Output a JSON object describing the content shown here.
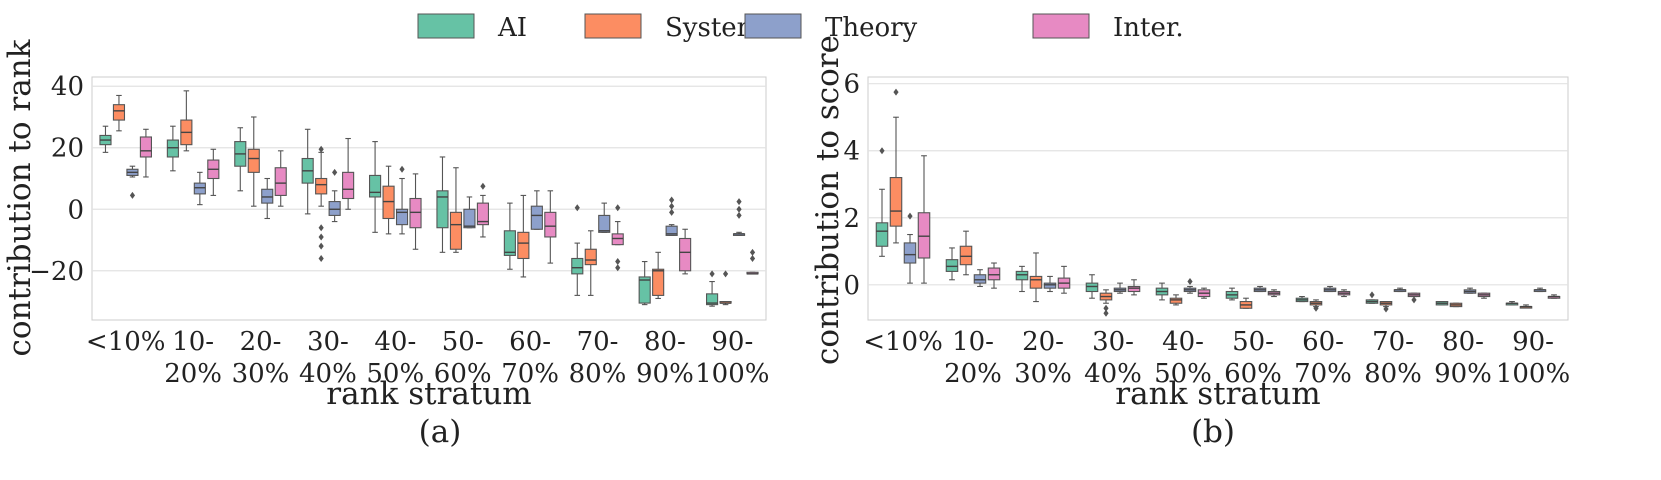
{
  "legend": [
    {
      "label": "AI",
      "color": "#66c2a5"
    },
    {
      "label": "Systems",
      "color": "#fc8d62"
    },
    {
      "label": "Theory",
      "color": "#8da0cb"
    },
    {
      "label": "Inter.",
      "color": "#e78ac3"
    }
  ],
  "chart_data": [
    {
      "type": "boxplot",
      "title": "",
      "caption": "(a)",
      "xlabel": "rank stratum",
      "ylabel": "contribution to rank",
      "ylim": [
        -36,
        43
      ],
      "yticks": [
        -20,
        0,
        20,
        40
      ],
      "ytick_labels": [
        "−20",
        "0",
        "20",
        "40"
      ],
      "categories": [
        [
          "<10%"
        ],
        [
          "10-",
          "20%"
        ],
        [
          "20-",
          "30%"
        ],
        [
          "30-",
          "40%"
        ],
        [
          "40-",
          "50%"
        ],
        [
          "50-",
          "60%"
        ],
        [
          "60-",
          "70%"
        ],
        [
          "70-",
          "80%"
        ],
        [
          "80-",
          "90%"
        ],
        [
          "90-",
          "100%"
        ]
      ],
      "series": [
        {
          "name": "AI",
          "boxes": [
            {
              "whislo": 18.5,
              "q1": 21,
              "med": 22.5,
              "q3": 24,
              "whishi": 27,
              "fliers": []
            },
            {
              "whislo": 12.5,
              "q1": 17,
              "med": 20,
              "q3": 22.5,
              "whishi": 27,
              "fliers": []
            },
            {
              "whislo": 6,
              "q1": 14,
              "med": 18,
              "q3": 22,
              "whishi": 26.5,
              "fliers": []
            },
            {
              "whislo": -1.5,
              "q1": 8.5,
              "med": 12.5,
              "q3": 16.5,
              "whishi": 26,
              "fliers": []
            },
            {
              "whislo": -7.5,
              "q1": 4,
              "med": 5.5,
              "q3": 11,
              "whishi": 22,
              "fliers": []
            },
            {
              "whislo": -14,
              "q1": -6,
              "med": 4,
              "q3": 6,
              "whishi": 17,
              "fliers": []
            },
            {
              "whislo": -19.5,
              "q1": -15,
              "med": -14,
              "q3": -7,
              "whishi": 2,
              "fliers": []
            },
            {
              "whislo": -28,
              "q1": -21,
              "med": -19,
              "q3": -16,
              "whishi": -11,
              "fliers": [
                0.5
              ]
            },
            {
              "whislo": -31,
              "q1": -30.5,
              "med": -23,
              "q3": -22,
              "whishi": -17,
              "fliers": []
            },
            {
              "whislo": -31.5,
              "q1": -31,
              "med": -30.5,
              "q3": -27.5,
              "whishi": -23.5,
              "fliers": [
                -21
              ]
            }
          ]
        },
        {
          "name": "Systems",
          "boxes": [
            {
              "whislo": 25.5,
              "q1": 29,
              "med": 32,
              "q3": 34,
              "whishi": 37,
              "fliers": []
            },
            {
              "whislo": 19,
              "q1": 21,
              "med": 25,
              "q3": 29,
              "whishi": 38.5,
              "fliers": []
            },
            {
              "whislo": 1,
              "q1": 12,
              "med": 16.5,
              "q3": 19.5,
              "whishi": 30,
              "fliers": []
            },
            {
              "whislo": 1,
              "q1": 5,
              "med": 8,
              "q3": 10,
              "whishi": 18.5,
              "fliers": [
                19.5,
                -6,
                -9,
                -12,
                -16
              ]
            },
            {
              "whislo": -8,
              "q1": -3,
              "med": 2.5,
              "q3": 7.5,
              "whishi": 14,
              "fliers": []
            },
            {
              "whislo": -14,
              "q1": -13,
              "med": -5,
              "q3": -1,
              "whishi": 13.5,
              "fliers": []
            },
            {
              "whislo": -22,
              "q1": -16,
              "med": -11,
              "q3": -7.5,
              "whishi": 4.5,
              "fliers": []
            },
            {
              "whislo": -28,
              "q1": -18,
              "med": -16.5,
              "q3": -13,
              "whishi": -7,
              "fliers": []
            },
            {
              "whislo": -29,
              "q1": -28,
              "med": -20,
              "q3": -19.5,
              "whishi": -14,
              "fliers": []
            },
            {
              "whislo": -31,
              "q1": -30.5,
              "med": -30.5,
              "q3": -30,
              "whishi": -30,
              "fliers": [
                -21
              ]
            }
          ]
        },
        {
          "name": "Theory",
          "boxes": [
            {
              "whislo": 10.5,
              "q1": 11,
              "med": 12,
              "q3": 13,
              "whishi": 14,
              "fliers": [
                4.5
              ]
            },
            {
              "whislo": 1.5,
              "q1": 5,
              "med": 7,
              "q3": 8.5,
              "whishi": 12,
              "fliers": []
            },
            {
              "whislo": -3,
              "q1": 2,
              "med": 4,
              "q3": 6.5,
              "whishi": 10,
              "fliers": []
            },
            {
              "whislo": -4,
              "q1": -2,
              "med": 0,
              "q3": 2.5,
              "whishi": 6,
              "fliers": [
                12
              ]
            },
            {
              "whislo": -8,
              "q1": -5,
              "med": -1,
              "q3": 0,
              "whishi": 10,
              "fliers": [
                13
              ]
            },
            {
              "whislo": -6,
              "q1": -6,
              "med": -5.5,
              "q3": 0,
              "whishi": 4,
              "fliers": []
            },
            {
              "whislo": -6.5,
              "q1": -6.5,
              "med": -2,
              "q3": 1,
              "whishi": 6,
              "fliers": []
            },
            {
              "whislo": -7.5,
              "q1": -7.5,
              "med": -7,
              "q3": -2,
              "whishi": 2,
              "fliers": []
            },
            {
              "whislo": -8.5,
              "q1": -8.5,
              "med": -8,
              "q3": -5.5,
              "whishi": -5,
              "fliers": [
                -1,
                1,
                3
              ]
            },
            {
              "whislo": -8.5,
              "q1": -8.5,
              "med": -8,
              "q3": -8,
              "whishi": -7.5,
              "fliers": [
                -2,
                0,
                2.5
              ]
            }
          ]
        },
        {
          "name": "Inter.",
          "boxes": [
            {
              "whislo": 10.5,
              "q1": 17,
              "med": 19,
              "q3": 23.5,
              "whishi": 26,
              "fliers": []
            },
            {
              "whislo": 4.5,
              "q1": 10,
              "med": 13,
              "q3": 16,
              "whishi": 19.5,
              "fliers": []
            },
            {
              "whislo": 1,
              "q1": 4.5,
              "med": 8.5,
              "q3": 13.5,
              "whishi": 19,
              "fliers": []
            },
            {
              "whislo": 0,
              "q1": 3.5,
              "med": 6.5,
              "q3": 12,
              "whishi": 23,
              "fliers": []
            },
            {
              "whislo": -13,
              "q1": -6,
              "med": -1,
              "q3": 3.5,
              "whishi": 11.5,
              "fliers": []
            },
            {
              "whislo": -9,
              "q1": -5,
              "med": -4,
              "q3": 2,
              "whishi": 4.5,
              "fliers": [
                7.5
              ]
            },
            {
              "whislo": -17.5,
              "q1": -9,
              "med": -5.5,
              "q3": -1,
              "whishi": 6,
              "fliers": []
            },
            {
              "whislo": -11.5,
              "q1": -11.5,
              "med": -9.5,
              "q3": -8,
              "whishi": -4,
              "fliers": [
                -17,
                -19,
                0.5
              ]
            },
            {
              "whislo": -21,
              "q1": -20,
              "med": -14,
              "q3": -9.5,
              "whishi": -6.5,
              "fliers": []
            },
            {
              "whislo": -21,
              "q1": -21,
              "med": -21,
              "q3": -20.5,
              "whishi": -20.5,
              "fliers": [
                -14,
                -16
              ]
            }
          ]
        }
      ]
    },
    {
      "type": "boxplot",
      "title": "",
      "caption": "(b)",
      "xlabel": "rank stratum",
      "ylabel": "contribution to score",
      "ylim": [
        -1.05,
        6.2
      ],
      "yticks": [
        0,
        2,
        4,
        6
      ],
      "ytick_labels": [
        "0",
        "2",
        "4",
        "6"
      ],
      "categories": [
        [
          "<10%"
        ],
        [
          "10-",
          "20%"
        ],
        [
          "20-",
          "30%"
        ],
        [
          "30-",
          "40%"
        ],
        [
          "40-",
          "50%"
        ],
        [
          "50-",
          "60%"
        ],
        [
          "60-",
          "70%"
        ],
        [
          "70-",
          "80%"
        ],
        [
          "80-",
          "90%"
        ],
        [
          "90-",
          "100%"
        ]
      ],
      "series": [
        {
          "name": "AI",
          "boxes": [
            {
              "whislo": 0.85,
              "q1": 1.15,
              "med": 1.6,
              "q3": 1.85,
              "whishi": 2.85,
              "fliers": [
                4.0
              ]
            },
            {
              "whislo": 0.15,
              "q1": 0.4,
              "med": 0.55,
              "q3": 0.75,
              "whishi": 1.1,
              "fliers": []
            },
            {
              "whislo": -0.2,
              "q1": 0.15,
              "med": 0.3,
              "q3": 0.4,
              "whishi": 0.55,
              "fliers": []
            },
            {
              "whislo": -0.4,
              "q1": -0.2,
              "med": -0.05,
              "q3": 0.05,
              "whishi": 0.3,
              "fliers": []
            },
            {
              "whislo": -0.45,
              "q1": -0.3,
              "med": -0.2,
              "q3": -0.1,
              "whishi": 0.05,
              "fliers": []
            },
            {
              "whislo": -0.45,
              "q1": -0.4,
              "med": -0.3,
              "q3": -0.2,
              "whishi": -0.1,
              "fliers": []
            },
            {
              "whislo": -0.5,
              "q1": -0.5,
              "med": -0.45,
              "q3": -0.4,
              "whishi": -0.35,
              "fliers": []
            },
            {
              "whislo": -0.55,
              "q1": -0.55,
              "med": -0.5,
              "q3": -0.45,
              "whishi": -0.45,
              "fliers": [
                -0.3
              ]
            },
            {
              "whislo": -0.6,
              "q1": -0.6,
              "med": -0.55,
              "q3": -0.5,
              "whishi": -0.5,
              "fliers": []
            },
            {
              "whislo": -0.6,
              "q1": -0.6,
              "med": -0.55,
              "q3": -0.55,
              "whishi": -0.5,
              "fliers": []
            }
          ]
        },
        {
          "name": "Systems",
          "boxes": [
            {
              "whislo": 1.25,
              "q1": 1.75,
              "med": 2.2,
              "q3": 3.2,
              "whishi": 5.0,
              "fliers": [
                5.75
              ]
            },
            {
              "whislo": 0.3,
              "q1": 0.6,
              "med": 0.85,
              "q3": 1.15,
              "whishi": 1.6,
              "fliers": []
            },
            {
              "whislo": -0.5,
              "q1": -0.1,
              "med": 0.15,
              "q3": 0.25,
              "whishi": 0.95,
              "fliers": []
            },
            {
              "whislo": -0.55,
              "q1": -0.45,
              "med": -0.35,
              "q3": -0.25,
              "whishi": -0.15,
              "fliers": [
                -0.7,
                -0.85
              ]
            },
            {
              "whislo": -0.6,
              "q1": -0.55,
              "med": -0.45,
              "q3": -0.4,
              "whishi": -0.3,
              "fliers": []
            },
            {
              "whislo": -0.7,
              "q1": -0.7,
              "med": -0.6,
              "q3": -0.5,
              "whishi": -0.4,
              "fliers": []
            },
            {
              "whislo": -0.65,
              "q1": -0.6,
              "med": -0.55,
              "q3": -0.5,
              "whishi": -0.45,
              "fliers": [
                -0.7
              ]
            },
            {
              "whislo": -0.65,
              "q1": -0.6,
              "med": -0.55,
              "q3": -0.5,
              "whishi": -0.5,
              "fliers": [
                -0.72
              ]
            },
            {
              "whislo": -0.65,
              "q1": -0.65,
              "med": -0.6,
              "q3": -0.55,
              "whishi": -0.55,
              "fliers": []
            },
            {
              "whislo": -0.65,
              "q1": -0.65,
              "med": -0.65,
              "q3": -0.65,
              "whishi": -0.6,
              "fliers": []
            }
          ]
        },
        {
          "name": "Theory",
          "boxes": [
            {
              "whislo": 0.05,
              "q1": 0.65,
              "med": 0.9,
              "q3": 1.25,
              "whishi": 1.5,
              "fliers": [
                2.05
              ]
            },
            {
              "whislo": -0.05,
              "q1": 0.05,
              "med": 0.15,
              "q3": 0.3,
              "whishi": 0.45,
              "fliers": []
            },
            {
              "whislo": -0.2,
              "q1": -0.1,
              "med": 0.0,
              "q3": 0.05,
              "whishi": 0.25,
              "fliers": []
            },
            {
              "whislo": -0.25,
              "q1": -0.2,
              "med": -0.15,
              "q3": -0.1,
              "whishi": 0.05,
              "fliers": []
            },
            {
              "whislo": -0.25,
              "q1": -0.2,
              "med": -0.15,
              "q3": -0.1,
              "whishi": -0.05,
              "fliers": [
                0.1
              ]
            },
            {
              "whislo": -0.2,
              "q1": -0.2,
              "med": -0.15,
              "q3": -0.1,
              "whishi": -0.05,
              "fliers": []
            },
            {
              "whislo": -0.2,
              "q1": -0.2,
              "med": -0.15,
              "q3": -0.1,
              "whishi": -0.05,
              "fliers": []
            },
            {
              "whislo": -0.2,
              "q1": -0.2,
              "med": -0.15,
              "q3": -0.15,
              "whishi": -0.1,
              "fliers": []
            },
            {
              "whislo": -0.25,
              "q1": -0.25,
              "med": -0.2,
              "q3": -0.15,
              "whishi": -0.1,
              "fliers": []
            },
            {
              "whislo": -0.2,
              "q1": -0.2,
              "med": -0.15,
              "q3": -0.15,
              "whishi": -0.1,
              "fliers": []
            }
          ]
        },
        {
          "name": "Inter.",
          "boxes": [
            {
              "whislo": 0.05,
              "q1": 0.8,
              "med": 1.45,
              "q3": 2.15,
              "whishi": 3.85,
              "fliers": []
            },
            {
              "whislo": -0.1,
              "q1": 0.15,
              "med": 0.3,
              "q3": 0.5,
              "whishi": 0.65,
              "fliers": []
            },
            {
              "whislo": -0.25,
              "q1": -0.1,
              "med": 0.05,
              "q3": 0.2,
              "whishi": 0.55,
              "fliers": []
            },
            {
              "whislo": -0.3,
              "q1": -0.2,
              "med": -0.1,
              "q3": -0.05,
              "whishi": 0.15,
              "fliers": []
            },
            {
              "whislo": -0.4,
              "q1": -0.35,
              "med": -0.25,
              "q3": -0.15,
              "whishi": -0.1,
              "fliers": []
            },
            {
              "whislo": -0.35,
              "q1": -0.3,
              "med": -0.25,
              "q3": -0.2,
              "whishi": -0.15,
              "fliers": []
            },
            {
              "whislo": -0.35,
              "q1": -0.3,
              "med": -0.25,
              "q3": -0.2,
              "whishi": -0.15,
              "fliers": []
            },
            {
              "whislo": -0.35,
              "q1": -0.35,
              "med": -0.3,
              "q3": -0.25,
              "whishi": -0.25,
              "fliers": [
                -0.45
              ]
            },
            {
              "whislo": -0.4,
              "q1": -0.35,
              "med": -0.3,
              "q3": -0.25,
              "whishi": -0.25,
              "fliers": []
            },
            {
              "whislo": -0.4,
              "q1": -0.4,
              "med": -0.35,
              "q3": -0.35,
              "whishi": -0.3,
              "fliers": []
            }
          ]
        }
      ]
    }
  ]
}
